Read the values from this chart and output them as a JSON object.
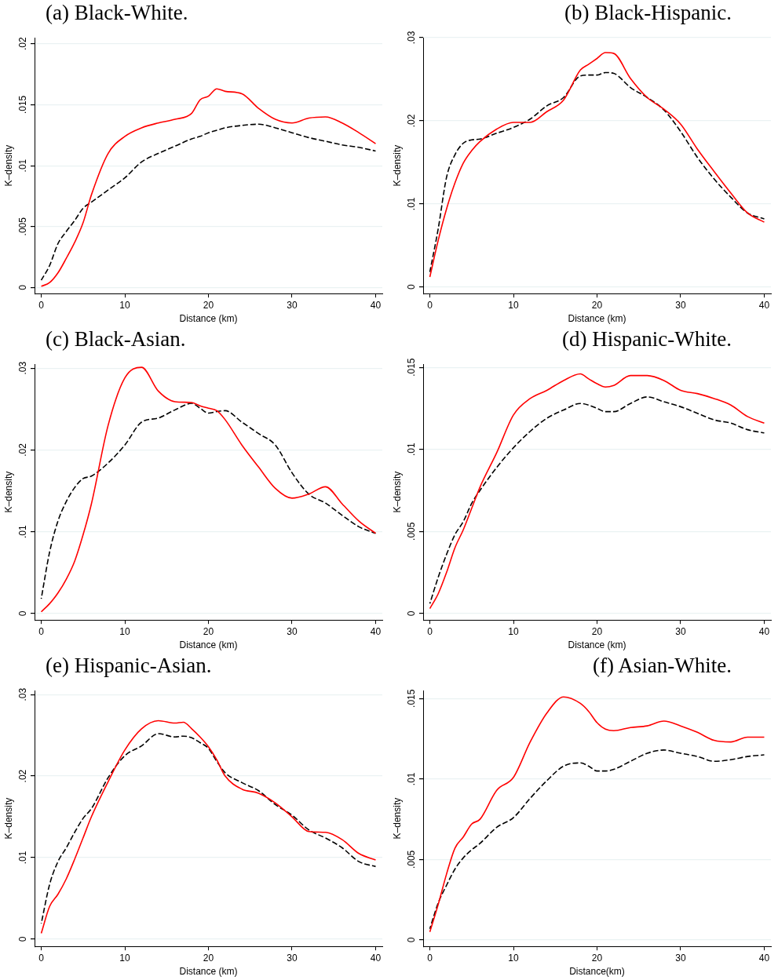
{
  "chart_data": [
    {
      "type": "line",
      "title": "(a) Black-White.",
      "xlabel": "Distance (km)",
      "ylabel": "K–density",
      "x": [
        0,
        1,
        2,
        3,
        4,
        5,
        6,
        8,
        10,
        12,
        14,
        16,
        18,
        19,
        20,
        21,
        22,
        24,
        26,
        28,
        30,
        32,
        34,
        36,
        38,
        40
      ],
      "xlim": [
        -0.8,
        40.8
      ],
      "ylim": [
        -0.0005,
        0.0205
      ],
      "xticks": [
        0,
        10,
        20,
        30,
        40
      ],
      "yticks": [
        {
          "value": 0,
          "label": "0"
        },
        {
          "value": 0.005,
          "label": ".005"
        },
        {
          "value": 0.01,
          "label": ".01"
        },
        {
          "value": 0.015,
          "label": ".015"
        },
        {
          "value": 0.02,
          "label": ".02"
        }
      ],
      "grid": "y",
      "series": [
        {
          "color": "#ff0000",
          "line_style": "solid",
          "values": [
            0.0001,
            0.0004,
            0.0012,
            0.0024,
            0.0037,
            0.0053,
            0.0076,
            0.011,
            0.0124,
            0.0131,
            0.0135,
            0.0138,
            0.0143,
            0.0154,
            0.0157,
            0.0163,
            0.0161,
            0.0159,
            0.0147,
            0.0138,
            0.0135,
            0.0139,
            0.014,
            0.0135,
            0.0127,
            0.0118
          ]
        },
        {
          "color": "#000000",
          "line_style": "dashed",
          "values": [
            0.0006,
            0.0018,
            0.0036,
            0.0046,
            0.0055,
            0.0065,
            0.007,
            0.008,
            0.009,
            0.0103,
            0.011,
            0.0116,
            0.0122,
            0.0124,
            0.0127,
            0.0129,
            0.0131,
            0.0133,
            0.0134,
            0.0131,
            0.0127,
            0.0123,
            0.012,
            0.0117,
            0.0115,
            0.0112
          ]
        }
      ]
    },
    {
      "type": "line",
      "title": "(b) Black-Hispanic.",
      "xlabel": "Distance (km)",
      "ylabel": "K–density",
      "x": [
        0,
        1,
        2,
        3,
        4,
        5,
        6,
        8,
        10,
        12,
        14,
        16,
        18,
        19,
        20,
        21,
        22,
        24,
        26,
        28,
        30,
        32,
        34,
        36,
        38,
        40
      ],
      "xlim": [
        -0.8,
        40.8
      ],
      "ylim": [
        -0.0008,
        0.03
      ],
      "xticks": [
        0,
        10,
        20,
        30,
        40
      ],
      "yticks": [
        {
          "value": 0,
          "label": "0"
        },
        {
          "value": 0.01,
          "label": ".01"
        },
        {
          "value": 0.02,
          "label": ".02"
        },
        {
          "value": 0.03,
          "label": ".03"
        }
      ],
      "grid": "y",
      "series": [
        {
          "color": "#ff0000",
          "line_style": "solid",
          "values": [
            0.0012,
            0.0056,
            0.0094,
            0.0125,
            0.0149,
            0.0164,
            0.0175,
            0.019,
            0.0198,
            0.0198,
            0.0211,
            0.0225,
            0.0261,
            0.0268,
            0.0275,
            0.0282,
            0.0281,
            0.0251,
            0.0228,
            0.0214,
            0.0196,
            0.0166,
            0.0139,
            0.0113,
            0.0089,
            0.0078
          ]
        },
        {
          "color": "#000000",
          "line_style": "dashed",
          "values": [
            0.0018,
            0.007,
            0.0132,
            0.0159,
            0.0173,
            0.0177,
            0.0178,
            0.0185,
            0.0192,
            0.0202,
            0.0218,
            0.0228,
            0.0254,
            0.0255,
            0.0255,
            0.0258,
            0.0257,
            0.024,
            0.0228,
            0.0213,
            0.0187,
            0.0156,
            0.013,
            0.0108,
            0.0089,
            0.0082
          ]
        }
      ]
    },
    {
      "type": "line",
      "title": "(c) Black-Asian.",
      "xlabel": "Distance (km)",
      "ylabel": "K–density",
      "x": [
        0,
        1,
        2,
        3,
        4,
        5,
        6,
        8,
        10,
        12,
        14,
        16,
        18,
        19,
        20,
        21,
        22,
        24,
        26,
        28,
        30,
        32,
        34,
        36,
        38,
        40
      ],
      "xlim": [
        -0.8,
        40.8
      ],
      "ylim": [
        -0.0008,
        0.0305
      ],
      "xticks": [
        0,
        10,
        20,
        30,
        40
      ],
      "yticks": [
        {
          "value": 0,
          "label": "0"
        },
        {
          "value": 0.01,
          "label": ".01"
        },
        {
          "value": 0.02,
          "label": ".02"
        },
        {
          "value": 0.03,
          "label": ".03"
        }
      ],
      "grid": "y",
      "series": [
        {
          "color": "#ff0000",
          "line_style": "solid",
          "values": [
            0.0002,
            0.0012,
            0.0025,
            0.0042,
            0.0064,
            0.0096,
            0.0134,
            0.023,
            0.0288,
            0.0301,
            0.0272,
            0.0259,
            0.0258,
            0.0254,
            0.0251,
            0.0248,
            0.0237,
            0.0206,
            0.0179,
            0.0153,
            0.0141,
            0.0146,
            0.0155,
            0.0134,
            0.0113,
            0.0098
          ]
        },
        {
          "color": "#000000",
          "line_style": "dashed",
          "values": [
            0.0018,
            0.0075,
            0.0113,
            0.0137,
            0.0154,
            0.0165,
            0.0168,
            0.0184,
            0.0206,
            0.0234,
            0.0239,
            0.0249,
            0.0257,
            0.0251,
            0.0245,
            0.0247,
            0.0248,
            0.0234,
            0.022,
            0.0206,
            0.0172,
            0.0146,
            0.0135,
            0.012,
            0.0106,
            0.0098
          ]
        }
      ]
    },
    {
      "type": "line",
      "title": "(d) Hispanic-White.",
      "xlabel": "Distance (km)",
      "ylabel": "K–density",
      "x": [
        0,
        1,
        2,
        3,
        4,
        5,
        6,
        8,
        10,
        12,
        14,
        16,
        18,
        19,
        20,
        21,
        22,
        24,
        26,
        28,
        30,
        32,
        34,
        36,
        38,
        40
      ],
      "xlim": [
        -0.8,
        40.8
      ],
      "ylim": [
        -0.0004,
        0.0152
      ],
      "xticks": [
        0,
        10,
        20,
        30,
        40
      ],
      "yticks": [
        {
          "value": 0,
          "label": "0"
        },
        {
          "value": 0.005,
          "label": ".005"
        },
        {
          "value": 0.01,
          "label": ".01"
        },
        {
          "value": 0.015,
          "label": ".015"
        }
      ],
      "grid": "y",
      "series": [
        {
          "color": "#ff0000",
          "line_style": "solid",
          "values": [
            0.0003,
            0.0012,
            0.0025,
            0.004,
            0.0051,
            0.0064,
            0.0077,
            0.0098,
            0.0121,
            0.0131,
            0.0136,
            0.0142,
            0.0146,
            0.0143,
            0.014,
            0.0138,
            0.0139,
            0.0145,
            0.0145,
            0.0142,
            0.0136,
            0.0134,
            0.0131,
            0.0127,
            0.012,
            0.0116
          ]
        },
        {
          "color": "#000000",
          "line_style": "dashed",
          "values": [
            0.0006,
            0.0022,
            0.0036,
            0.0048,
            0.0056,
            0.0067,
            0.0075,
            0.0089,
            0.0101,
            0.0111,
            0.0119,
            0.0124,
            0.0128,
            0.0127,
            0.0125,
            0.0123,
            0.0123,
            0.0128,
            0.0132,
            0.0129,
            0.0126,
            0.0122,
            0.0118,
            0.0116,
            0.0112,
            0.011
          ]
        }
      ]
    },
    {
      "type": "line",
      "title": "(e) Hispanic-Asian.",
      "xlabel": "Distance (km)",
      "ylabel": "K–density",
      "x": [
        0,
        1,
        2,
        3,
        4,
        5,
        6,
        8,
        10,
        12,
        14,
        16,
        17,
        18,
        19,
        20,
        21,
        22,
        24,
        26,
        28,
        30,
        32,
        34,
        36,
        38,
        40
      ],
      "xlim": [
        -0.8,
        40.8
      ],
      "ylim": [
        -0.0009,
        0.0305
      ],
      "xticks": [
        0,
        10,
        20,
        30,
        40
      ],
      "yticks": [
        {
          "value": 0,
          "label": "0"
        },
        {
          "value": 0.01,
          "label": ".01"
        },
        {
          "value": 0.02,
          "label": ".02"
        },
        {
          "value": 0.03,
          "label": ".03"
        }
      ],
      "grid": "y",
      "series": [
        {
          "color": "#ff0000",
          "line_style": "solid",
          "values": [
            0.0007,
            0.004,
            0.0055,
            0.0074,
            0.0098,
            0.0124,
            0.015,
            0.0193,
            0.0232,
            0.0258,
            0.0268,
            0.0265,
            0.0266,
            0.0258,
            0.0248,
            0.0236,
            0.022,
            0.02,
            0.0184,
            0.0179,
            0.0167,
            0.015,
            0.0132,
            0.0131,
            0.0122,
            0.0105,
            0.0097
          ]
        },
        {
          "color": "#000000",
          "line_style": "dashed",
          "values": [
            0.0019,
            0.0067,
            0.0095,
            0.0112,
            0.0131,
            0.0148,
            0.016,
            0.0198,
            0.0225,
            0.0237,
            0.0252,
            0.0248,
            0.0249,
            0.0247,
            0.0241,
            0.0234,
            0.0218,
            0.0204,
            0.0192,
            0.0182,
            0.0165,
            0.0152,
            0.0134,
            0.0124,
            0.0112,
            0.0095,
            0.0089
          ]
        }
      ]
    },
    {
      "type": "line",
      "title": "(f) Asian-White.",
      "xlabel": "Distance(km)",
      "ylabel": "K–density",
      "x": [
        0,
        1,
        2,
        3,
        4,
        5,
        6,
        8,
        10,
        12,
        14,
        16,
        18,
        19,
        20,
        21,
        22,
        24,
        26,
        28,
        30,
        32,
        34,
        36,
        38,
        40
      ],
      "xlim": [
        -0.8,
        40.8
      ],
      "ylim": [
        -0.0004,
        0.0155
      ],
      "xticks": [
        0,
        10,
        20,
        30,
        40
      ],
      "yticks": [
        {
          "value": 0,
          "label": "0"
        },
        {
          "value": 0.005,
          "label": ".005"
        },
        {
          "value": 0.01,
          "label": ".01"
        },
        {
          "value": 0.015,
          "label": ".015"
        }
      ],
      "grid": "y",
      "series": [
        {
          "color": "#ff0000",
          "line_style": "solid",
          "values": [
            0.0005,
            0.0022,
            0.0041,
            0.0057,
            0.0064,
            0.0072,
            0.0075,
            0.0093,
            0.0101,
            0.0123,
            0.0141,
            0.0151,
            0.0147,
            0.0142,
            0.0135,
            0.0131,
            0.013,
            0.0132,
            0.0133,
            0.0136,
            0.0133,
            0.0129,
            0.0124,
            0.0123,
            0.0126,
            0.0126
          ]
        },
        {
          "color": "#000000",
          "line_style": "dashed",
          "values": [
            0.0007,
            0.0023,
            0.0034,
            0.0044,
            0.0051,
            0.0056,
            0.006,
            0.007,
            0.0076,
            0.0088,
            0.0099,
            0.0108,
            0.011,
            0.0108,
            0.0105,
            0.0105,
            0.0106,
            0.0111,
            0.0116,
            0.0118,
            0.0116,
            0.0114,
            0.0111,
            0.0112,
            0.0114,
            0.0115
          ]
        }
      ]
    }
  ]
}
